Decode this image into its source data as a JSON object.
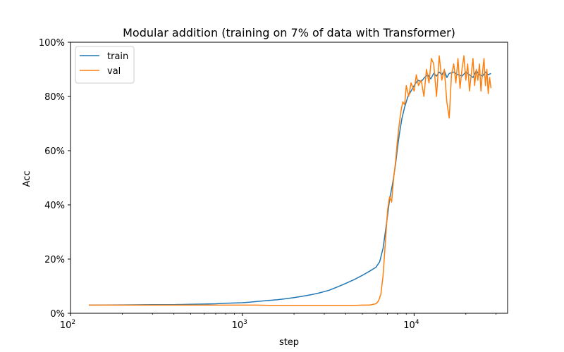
{
  "chart_data": {
    "type": "line",
    "title": "Modular addition (training on 7% of data with Transformer)",
    "xlabel": "step",
    "ylabel": "Acc",
    "xscale": "log",
    "xlim": [
      100,
      35000
    ],
    "ylim": [
      0,
      100
    ],
    "yformat": "percent",
    "x_ticks": [
      {
        "value": 100,
        "base": "10",
        "exp": "2"
      },
      {
        "value": 1000,
        "base": "10",
        "exp": "3"
      },
      {
        "value": 10000,
        "base": "10",
        "exp": "4"
      }
    ],
    "y_ticks": [
      {
        "value": 0,
        "label": "0%"
      },
      {
        "value": 20,
        "label": "20%"
      },
      {
        "value": 40,
        "label": "40%"
      },
      {
        "value": 60,
        "label": "60%"
      },
      {
        "value": 80,
        "label": "80%"
      },
      {
        "value": 100,
        "label": "100%"
      }
    ],
    "grid": false,
    "legend": "upper-left",
    "series": [
      {
        "name": "train",
        "color": "#1f77b4",
        "x": [
          128,
          200,
          300,
          400,
          500,
          600,
          700,
          800,
          900,
          1000,
          1100,
          1200,
          1400,
          1600,
          1800,
          2000,
          2200,
          2500,
          2800,
          3200,
          3600,
          4000,
          4500,
          5000,
          5500,
          6000,
          6300,
          6600,
          6800,
          7000,
          7200,
          7500,
          7800,
          8000,
          8200,
          8500,
          8800,
          9200,
          9600,
          10000,
          10500,
          11000,
          11500,
          12000,
          12500,
          13000,
          13500,
          14000,
          14500,
          15000,
          15500,
          16000,
          17000,
          18000,
          19000,
          20000,
          21000,
          22000,
          23000,
          24000,
          25000,
          26000,
          27000,
          28000
        ],
        "y": [
          3.0,
          3.1,
          3.2,
          3.2,
          3.3,
          3.4,
          3.5,
          3.7,
          3.8,
          3.9,
          4.1,
          4.3,
          4.7,
          5.0,
          5.4,
          5.8,
          6.2,
          6.8,
          7.5,
          8.5,
          9.8,
          11.0,
          12.5,
          14.0,
          15.5,
          17.0,
          19.0,
          24.0,
          30.0,
          36.0,
          42.0,
          48.0,
          55.0,
          61.0,
          66.0,
          72.0,
          76.0,
          80.0,
          82.0,
          84.0,
          86.0,
          85.5,
          87.0,
          88.0,
          86.5,
          88.5,
          87.5,
          89.0,
          88.0,
          89.5,
          87.0,
          88.5,
          89.0,
          88.0,
          87.5,
          89.0,
          88.0,
          87.0,
          89.5,
          88.0,
          87.5,
          89.0,
          88.0,
          88.5
        ]
      },
      {
        "name": "val",
        "color": "#ff7f0e",
        "x": [
          128,
          200,
          300,
          400,
          500,
          600,
          700,
          800,
          900,
          1000,
          1200,
          1500,
          2000,
          2500,
          3000,
          3500,
          4000,
          4500,
          5000,
          5500,
          6000,
          6200,
          6400,
          6600,
          6800,
          7000,
          7200,
          7400,
          7600,
          7800,
          8000,
          8200,
          8400,
          8600,
          8800,
          9000,
          9300,
          9600,
          10000,
          10300,
          10600,
          11000,
          11400,
          11800,
          12200,
          12600,
          13000,
          13500,
          14000,
          14500,
          15000,
          15500,
          16000,
          16500,
          17000,
          17500,
          18000,
          18500,
          19000,
          19500,
          20000,
          20500,
          21000,
          21500,
          22000,
          22500,
          23000,
          23500,
          24000,
          24500,
          25000,
          25500,
          26000,
          26500,
          27000,
          27500,
          28000
        ],
        "y": [
          3.0,
          3.0,
          3.0,
          3.0,
          3.0,
          3.0,
          3.0,
          3.0,
          3.0,
          3.0,
          3.0,
          2.9,
          2.9,
          2.9,
          2.9,
          2.9,
          2.9,
          2.9,
          3.0,
          3.0,
          3.5,
          4.5,
          7.0,
          14.0,
          26.0,
          38.0,
          43.0,
          41.0,
          50.0,
          56.0,
          64.0,
          70.0,
          75.0,
          78.0,
          77.0,
          84.0,
          80.0,
          85.0,
          82.0,
          88.0,
          84.0,
          86.0,
          80.0,
          90.0,
          85.0,
          94.0,
          92.0,
          80.0,
          95.0,
          86.0,
          90.0,
          78.0,
          72.0,
          88.0,
          92.0,
          85.0,
          94.0,
          83.0,
          90.0,
          95.0,
          86.0,
          92.0,
          82.0,
          88.0,
          94.0,
          84.0,
          90.0,
          86.0,
          92.0,
          82.0,
          89.0,
          94.0,
          84.0,
          90.0,
          81.0,
          87.0,
          83.0
        ]
      }
    ]
  }
}
